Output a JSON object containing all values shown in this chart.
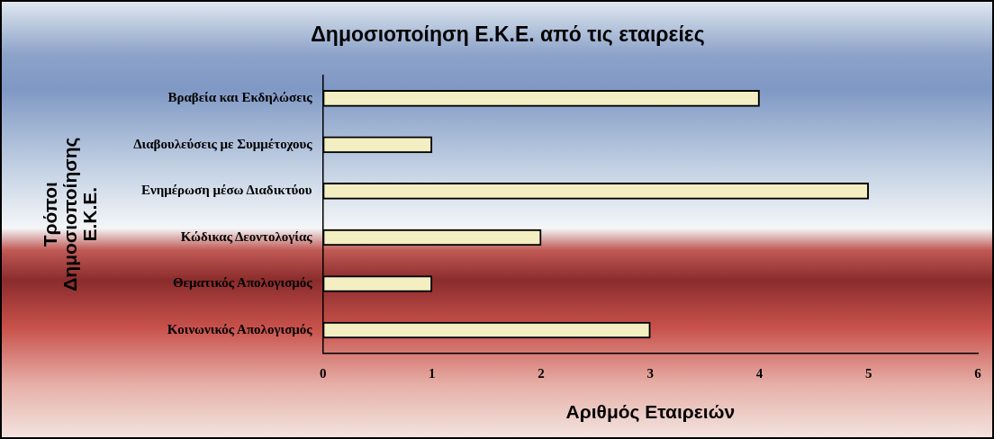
{
  "chart_data": {
    "type": "bar",
    "orientation": "horizontal",
    "title": "Δημοσιοποίηση Ε.Κ.Ε. από τις εταιρείες",
    "xlabel": "Αριθμός Εταιρειών",
    "ylabel": "Τρόποι Δημοσιοποίησης Ε.Κ.Ε.",
    "categories": [
      "Βραβεία και Εκδηλώσεις",
      "Διαβουλεύσεις με Συμμέτοχους",
      "Ενημέρωση μέσω Διαδικτύου",
      "Κώδικας Δεοντολογίας",
      "Θεματικός Απολογισμός",
      "Κοινωνικός Απολογισμός"
    ],
    "values": [
      4,
      1,
      5,
      2,
      1,
      3
    ],
    "color": "#f3efc2",
    "xlim": [
      0,
      6
    ],
    "xticks": [
      0,
      1,
      2,
      3,
      4,
      5,
      6
    ],
    "grid": false,
    "legend": false
  }
}
